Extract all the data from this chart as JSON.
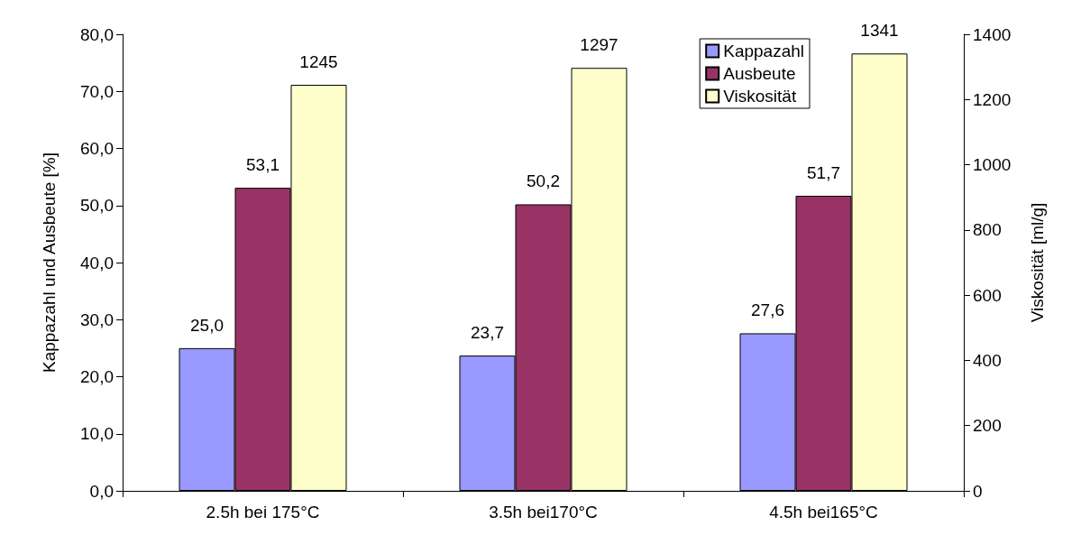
{
  "chart_data": {
    "type": "bar",
    "categories": [
      "2.5h bei 175°C",
      "3.5h bei170°C",
      "4.5h bei165°C"
    ],
    "ylabel": "Kappazahl und Ausbeute [%]",
    "y2label": "Viskosität [ml/g]",
    "ylim": [
      0,
      80
    ],
    "yticks": [
      {
        "value": 0,
        "label": "0,0"
      },
      {
        "value": 10,
        "label": "10,0"
      },
      {
        "value": 20,
        "label": "20,0"
      },
      {
        "value": 30,
        "label": "30,0"
      },
      {
        "value": 40,
        "label": "40,0"
      },
      {
        "value": 50,
        "label": "50,0"
      },
      {
        "value": 60,
        "label": "60,0"
      },
      {
        "value": 70,
        "label": "70,0"
      },
      {
        "value": 80,
        "label": "80,0"
      }
    ],
    "y2lim": [
      0,
      1400
    ],
    "y2ticks": [
      0,
      200,
      400,
      600,
      800,
      1000,
      1200,
      1400
    ],
    "series": [
      {
        "name": "Kappazahl",
        "color": "#9999ff",
        "values": [
          25.0,
          23.7,
          27.6
        ],
        "value_labels": [
          "25,0",
          "23,7",
          "27,6"
        ]
      },
      {
        "name": "Ausbeute",
        "color": "#993366",
        "values": [
          53.1,
          50.2,
          51.7
        ],
        "value_labels": [
          "53,1",
          "50,2",
          "51,7"
        ]
      },
      {
        "name": "Viskosität",
        "color": "#ffffcc",
        "axis": "y2",
        "values": [
          1245,
          1297,
          1341
        ],
        "value_labels": [
          "1245",
          "1297",
          "1341"
        ]
      }
    ],
    "legend": "top right",
    "grid": false
  }
}
